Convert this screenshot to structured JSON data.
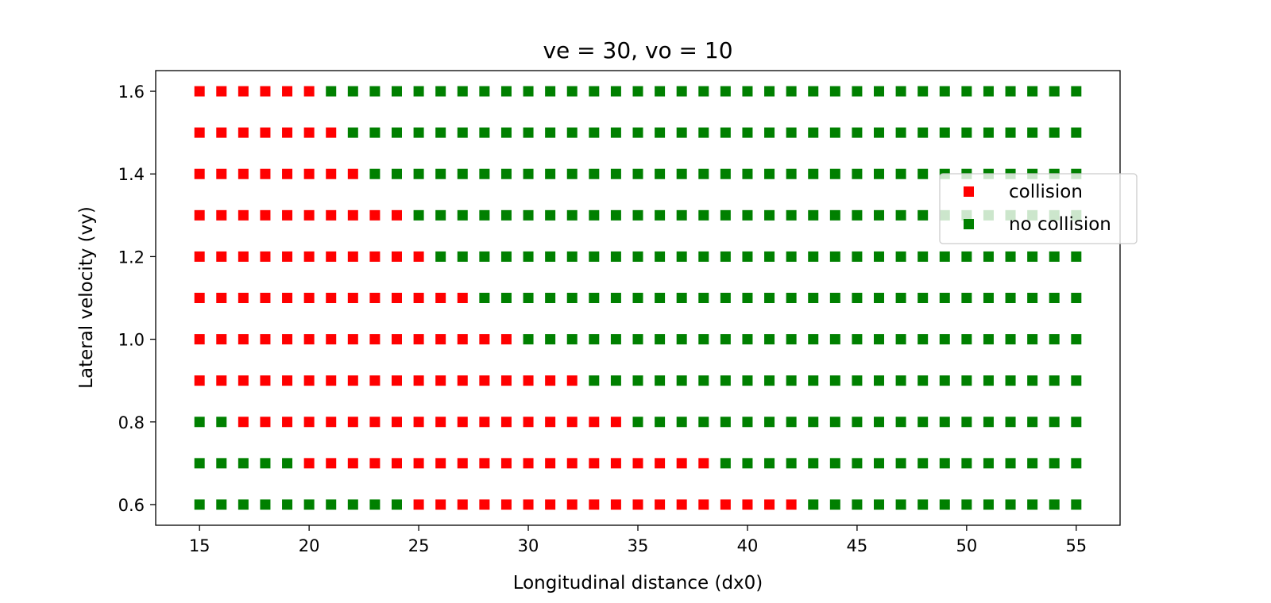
{
  "chart_data": {
    "type": "scatter",
    "title": "ve = 30, vo = 10",
    "xlabel": "Longitudinal distance (dx0)",
    "ylabel": "Lateral velocity (vy)",
    "xlim": [
      13,
      57
    ],
    "ylim": [
      0.55,
      1.65
    ],
    "xticks": [
      15,
      20,
      25,
      30,
      35,
      40,
      45,
      50,
      55
    ],
    "yticks": [
      0.6,
      0.8,
      1.0,
      1.2,
      1.4,
      1.6
    ],
    "xtick_labels": [
      "15",
      "20",
      "25",
      "30",
      "35",
      "40",
      "45",
      "50",
      "55"
    ],
    "ytick_labels": [
      "0.6",
      "0.8",
      "1.0",
      "1.2",
      "1.4",
      "1.6"
    ],
    "grid": false,
    "marker": "square",
    "legend_position": "right",
    "x_values": [
      15,
      16,
      17,
      18,
      19,
      20,
      21,
      22,
      23,
      24,
      25,
      26,
      27,
      28,
      29,
      30,
      31,
      32,
      33,
      34,
      35,
      36,
      37,
      38,
      39,
      40,
      41,
      42,
      43,
      44,
      45,
      46,
      47,
      48,
      49,
      50,
      51,
      52,
      53,
      54,
      55
    ],
    "rows": [
      {
        "vy": 1.6,
        "collision_x": [
          15,
          20
        ]
      },
      {
        "vy": 1.5,
        "collision_x": [
          15,
          21
        ]
      },
      {
        "vy": 1.4,
        "collision_x": [
          15,
          22
        ]
      },
      {
        "vy": 1.3,
        "collision_x": [
          15,
          24
        ]
      },
      {
        "vy": 1.2,
        "collision_x": [
          15,
          25
        ]
      },
      {
        "vy": 1.1,
        "collision_x": [
          15,
          27
        ]
      },
      {
        "vy": 1.0,
        "collision_x": [
          15,
          29
        ]
      },
      {
        "vy": 0.9,
        "collision_x": [
          15,
          32
        ]
      },
      {
        "vy": 0.8,
        "collision_x": [
          17,
          34
        ]
      },
      {
        "vy": 0.7,
        "collision_x": [
          20,
          38
        ]
      },
      {
        "vy": 0.6,
        "collision_x": [
          25,
          42
        ]
      }
    ],
    "series": [
      {
        "name": "collision",
        "color": "#ff0000"
      },
      {
        "name": "no collision",
        "color": "#008000"
      }
    ]
  }
}
